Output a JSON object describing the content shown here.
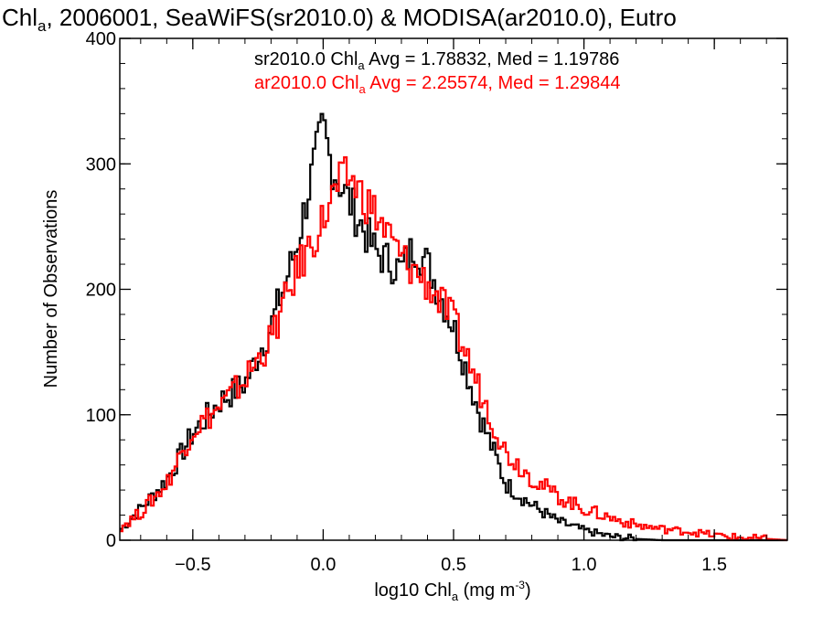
{
  "chart_data": {
    "type": "line",
    "subtype": "step-histogram",
    "title": {
      "pre": "Chl",
      "sub": "a",
      "post": ", 2006001, SeaWiFS(sr2010.0) & MODISA(ar2010.0), Eutro"
    },
    "xlabel": {
      "pre": "log10 Chl",
      "sub": "a",
      "post": " (mg m",
      "sup": "-3",
      "end": ")"
    },
    "ylabel": "Number of Observations",
    "xlim": [
      -0.78,
      1.78
    ],
    "ylim": [
      0,
      400
    ],
    "x_ticks": [
      -0.5,
      0.0,
      0.5,
      1.0,
      1.5
    ],
    "x_tick_labels": [
      "−0.5",
      "0.0",
      "0.5",
      "1.0",
      "1.5"
    ],
    "y_ticks": [
      0,
      100,
      200,
      300,
      400
    ],
    "y_tick_labels": [
      "0",
      "100",
      "200",
      "300",
      "400"
    ],
    "grid": false,
    "legend_position": "top-center",
    "series": [
      {
        "color": "#000000",
        "legend": {
          "pre": "sr2010.0 Chl",
          "sub": "a",
          "post": " Avg = 1.78832, Med = 1.19786"
        },
        "peaks": [
          [
            -0.78,
            8
          ],
          [
            -0.7,
            25
          ],
          [
            -0.6,
            48
          ],
          [
            -0.5,
            85
          ],
          [
            -0.4,
            110
          ],
          [
            -0.3,
            125
          ],
          [
            -0.2,
            170
          ],
          [
            -0.1,
            235
          ],
          [
            -0.05,
            285
          ],
          [
            0.0,
            330
          ],
          [
            0.03,
            300
          ],
          [
            0.1,
            270
          ],
          [
            0.2,
            230
          ],
          [
            0.3,
            215
          ],
          [
            0.35,
            235
          ],
          [
            0.4,
            220
          ],
          [
            0.5,
            170
          ],
          [
            0.6,
            100
          ],
          [
            0.7,
            45
          ],
          [
            0.8,
            28
          ],
          [
            0.9,
            15
          ],
          [
            1.0,
            8
          ],
          [
            1.1,
            3
          ],
          [
            1.2,
            1
          ],
          [
            1.3,
            0
          ],
          [
            1.78,
            0
          ]
        ]
      },
      {
        "color": "#ff0000",
        "legend": {
          "pre": "ar2010.0 Chl",
          "sub": "a",
          "post": " Avg = 2.25574, Med = 1.29844"
        },
        "peaks": [
          [
            -0.78,
            10
          ],
          [
            -0.7,
            22
          ],
          [
            -0.6,
            45
          ],
          [
            -0.5,
            88
          ],
          [
            -0.4,
            105
          ],
          [
            -0.3,
            128
          ],
          [
            -0.2,
            160
          ],
          [
            -0.1,
            215
          ],
          [
            0.0,
            255
          ],
          [
            0.05,
            280
          ],
          [
            0.1,
            290
          ],
          [
            0.2,
            260
          ],
          [
            0.3,
            225
          ],
          [
            0.4,
            205
          ],
          [
            0.5,
            175
          ],
          [
            0.6,
            120
          ],
          [
            0.7,
            70
          ],
          [
            0.8,
            50
          ],
          [
            0.9,
            35
          ],
          [
            1.0,
            25
          ],
          [
            1.1,
            18
          ],
          [
            1.2,
            12
          ],
          [
            1.3,
            9
          ],
          [
            1.4,
            7
          ],
          [
            1.5,
            4
          ],
          [
            1.6,
            2
          ],
          [
            1.7,
            1
          ],
          [
            1.78,
            0
          ]
        ]
      }
    ]
  }
}
